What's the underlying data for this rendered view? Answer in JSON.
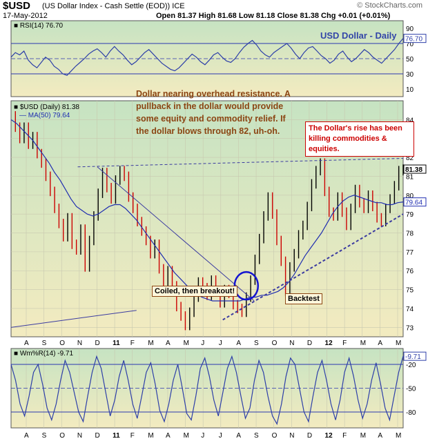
{
  "header": {
    "symbol": "$USD",
    "description": "(US Dollar Index - Cash Settle (EOD)) ICE",
    "date": "17-May-2012",
    "ohlc": "Open 81.37  High 81.68  Low 81.18  Close 81.38  Chg +0.01 (+0.01%)",
    "watermark": "© StockCharts.com"
  },
  "annotations": {
    "main_note": "Dollar nearing overhead resistance. A pullback in the dollar would provide some equity and commodity relief. If the dollar blows through 82, uh-oh.",
    "red_note": "The Dollar's rise has been killing commodities & equities.",
    "coiled": "Coiled, then breakout!",
    "backtest": "Backtest"
  },
  "colors": {
    "panel_bg_top": "#c6e3c2",
    "panel_bg_bottom": "#f3ebc0",
    "price_line": "#000000",
    "down_bar": "#cc0000",
    "ma_line": "#1f2db0",
    "rsi_line": "#2c3ea8",
    "rsi_fill": "#86b4c8",
    "level_line": "#2a36b0",
    "note_brown": "#8B4513",
    "note_red": "#cc0000"
  },
  "chart_data": [
    {
      "type": "line",
      "title": "RSI(14) 76.70",
      "panel_label": "USD Dollar - Daily",
      "current_value": "76.70",
      "y_ticks": [
        "90",
        "70",
        "50",
        "30",
        "10"
      ],
      "ylim": [
        0,
        100
      ],
      "levels": [
        70,
        30
      ],
      "series": [
        {
          "name": "RSI(14)",
          "values": [
            52,
            58,
            55,
            60,
            48,
            42,
            38,
            45,
            52,
            48,
            40,
            36,
            30,
            28,
            34,
            40,
            45,
            50,
            56,
            60,
            63,
            58,
            52,
            60,
            66,
            60,
            55,
            48,
            42,
            46,
            52,
            58,
            62,
            56,
            50,
            44,
            40,
            36,
            34,
            38,
            44,
            50,
            56,
            52,
            46,
            42,
            48,
            55,
            58,
            52,
            47,
            45,
            50,
            58,
            65,
            70,
            74,
            68,
            60,
            55,
            52,
            58,
            62,
            66,
            70,
            64,
            56,
            50,
            58,
            64,
            66,
            60,
            54,
            50,
            44,
            48,
            56,
            60,
            52,
            46,
            50,
            56,
            62,
            58,
            52,
            48,
            44,
            50,
            56,
            62,
            70,
            76.7
          ]
        }
      ]
    },
    {
      "type": "bar",
      "title": "$USD (Daily) 81.38",
      "legend": [
        "$USD (Daily) 81.38",
        "MA(50) 79.64"
      ],
      "current_price": "81.38",
      "current_ma": "79.64",
      "x_ticks": [
        "A",
        "S",
        "O",
        "N",
        "D",
        "11",
        "F",
        "M",
        "A",
        "M",
        "J",
        "J",
        "A",
        "S",
        "O",
        "N",
        "D",
        "12",
        "F",
        "M",
        "A",
        "M"
      ],
      "y_ticks": [
        "84",
        "83",
        "82",
        "81",
        "80",
        "79",
        "78",
        "77",
        "76",
        "75",
        "74",
        "73"
      ],
      "ylim": [
        72.5,
        85
      ],
      "series": [
        {
          "name": "$USD (Daily)",
          "values": [
            84.2,
            83.6,
            83.0,
            83.6,
            82.7,
            83.1,
            82.2,
            81.7,
            81.0,
            80.2,
            79.3,
            78.5,
            77.8,
            78.8,
            77.4,
            77.1,
            78.2,
            76.2,
            77.6,
            78.9,
            80.1,
            81.2,
            80.4,
            79.8,
            80.8,
            81.3,
            81.0,
            79.9,
            79.3,
            78.6,
            78.1,
            77.6,
            76.9,
            77.4,
            76.1,
            75.4,
            76.0,
            75.2,
            74.1,
            73.6,
            73.1,
            73.8,
            74.6,
            75.4,
            75.1,
            74.7,
            75.5,
            74.9,
            74.3,
            75.0,
            74.8,
            74.2,
            74.0,
            73.8,
            74.6,
            75.5,
            76.6,
            77.7,
            78.9,
            79.9,
            79.0,
            77.6,
            76.5,
            74.9,
            76.2,
            76.9,
            77.9,
            78.4,
            79.4,
            80.6,
            81.3,
            81.7,
            80.2,
            79.1,
            78.9,
            79.9,
            79.1,
            78.4,
            79.3,
            80.3,
            79.6,
            79.3,
            80.0,
            79.4,
            78.8,
            78.6,
            79.3,
            79.8,
            80.5,
            81.3,
            81.38
          ]
        },
        {
          "name": "MA(50)",
          "values": [
            84.0,
            83.8,
            83.5,
            83.2,
            82.9,
            82.5,
            82.1,
            81.7,
            81.2,
            80.8,
            80.3,
            79.8,
            79.4,
            79.2,
            79.0,
            78.9,
            79.0,
            79.2,
            79.4,
            79.5,
            79.5,
            79.3,
            79.0,
            78.7,
            78.3,
            77.9,
            77.5,
            77.1,
            76.7,
            76.3,
            75.9,
            75.6,
            75.3,
            75.0,
            74.8,
            74.6,
            74.5,
            74.4,
            74.4,
            74.4,
            74.4,
            74.4,
            74.4,
            74.5,
            74.6,
            74.6,
            74.7,
            74.7,
            74.8,
            74.9,
            75.1,
            75.4,
            75.8,
            76.3,
            76.8,
            77.2,
            77.6,
            78.0,
            78.5,
            79.0,
            79.4,
            79.7,
            79.9,
            80.0,
            79.9,
            79.8,
            79.7,
            79.6,
            79.6,
            79.5,
            79.5,
            79.6,
            79.64
          ]
        }
      ],
      "trendlines": [
        {
          "name": "resistance",
          "from": [
            0.17,
            81.5
          ],
          "to": [
            1.0,
            81.95
          ]
        },
        {
          "name": "descending",
          "from": [
            0.22,
            81.5
          ],
          "to": [
            0.62,
            74.4
          ]
        },
        {
          "name": "lower-support",
          "from": [
            0.0,
            73.0
          ],
          "to": [
            0.32,
            73.9
          ]
        },
        {
          "name": "rising-support",
          "from": [
            0.54,
            73.4
          ],
          "to": [
            1.0,
            79.0
          ]
        }
      ]
    },
    {
      "type": "line",
      "title": "Wm%R(14) -9.71",
      "current_value": "-9.71",
      "y_ticks": [
        "-20",
        "-50",
        "-80"
      ],
      "ylim": [
        -100,
        0
      ],
      "levels": [
        -20,
        -50,
        -80
      ],
      "series": [
        {
          "name": "Wm%R(14)",
          "values": [
            -20,
            -40,
            -70,
            -85,
            -60,
            -30,
            -20,
            -45,
            -75,
            -90,
            -70,
            -40,
            -15,
            -30,
            -55,
            -80,
            -92,
            -60,
            -30,
            -10,
            -25,
            -55,
            -85,
            -65,
            -35,
            -15,
            -40,
            -70,
            -88,
            -60,
            -30,
            -18,
            -45,
            -78,
            -92,
            -70,
            -40,
            -20,
            -50,
            -82,
            -90,
            -60,
            -25,
            -12,
            -35,
            -65,
            -85,
            -55,
            -25,
            -10,
            -30,
            -60,
            -88,
            -75,
            -40,
            -15,
            -30,
            -60,
            -85,
            -95,
            -70,
            -35,
            -12,
            -20,
            -50,
            -80,
            -92,
            -60,
            -30,
            -15,
            -40,
            -70,
            -90,
            -65,
            -30,
            -12,
            -35,
            -65,
            -88,
            -70,
            -40,
            -18,
            -45,
            -75,
            -90,
            -60,
            -30,
            -9.71
          ]
        }
      ]
    }
  ]
}
